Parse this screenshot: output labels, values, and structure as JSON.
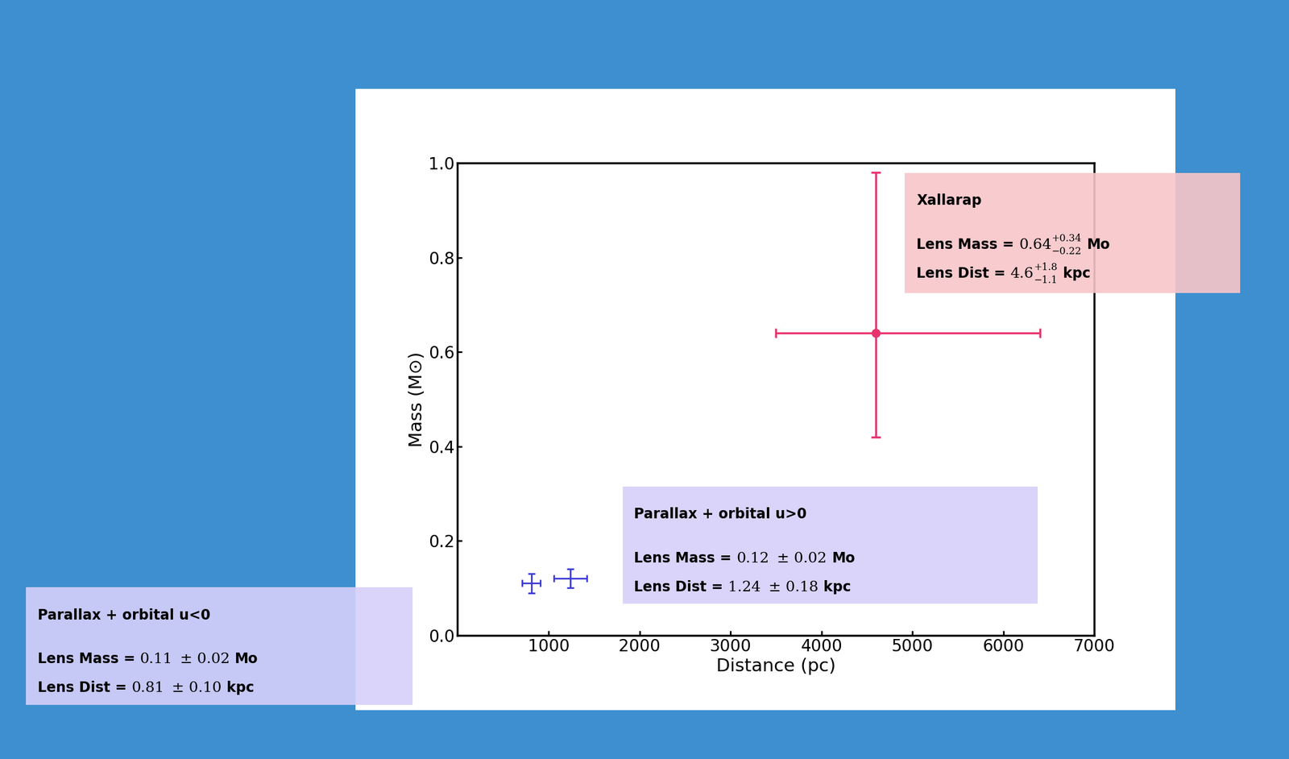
{
  "chart_data": {
    "type": "scatter",
    "x_label": "Distance (pc)",
    "y_label": "Mass (M⊙)",
    "xlim": [
      0,
      7000
    ],
    "xticks": [
      1000,
      2000,
      3000,
      4000,
      5000,
      6000,
      7000
    ],
    "ylim": [
      0.0,
      1.0
    ],
    "yticks": [
      0.0,
      0.2,
      0.4,
      0.6,
      0.8,
      1.0
    ],
    "grid": false,
    "series": [
      {
        "name": "Xallarap",
        "color": "#e8336e",
        "marker": "o",
        "x": [
          4600
        ],
        "y": [
          0.64
        ],
        "xerr_minus": [
          1100
        ],
        "xerr_plus": [
          1800
        ],
        "yerr_minus": [
          0.22
        ],
        "yerr_plus": [
          0.34
        ],
        "box_lines": [
          {
            "text": "Lens Mass = ",
            "value": "0.64",
            "upper": "+0.34",
            "lower": "−0.22",
            "unit": "Mo"
          },
          {
            "text": "Lens Dist = ",
            "value": "4.6",
            "upper": "+1.8",
            "lower": "−1.1",
            "unit": "kpc"
          }
        ]
      },
      {
        "name": "Parallax + orbital u>0",
        "color": "#3b3bd6",
        "marker": "none",
        "x": [
          1240
        ],
        "y": [
          0.12
        ],
        "xerr_minus": [
          180
        ],
        "xerr_plus": [
          180
        ],
        "yerr_minus": [
          0.02
        ],
        "yerr_plus": [
          0.02
        ],
        "box_lines": [
          {
            "text": "Lens Mass = ",
            "value": "0.12",
            "pm": "± 0.02",
            "unit": "Mo"
          },
          {
            "text": "Lens Dist = ",
            "value": "1.24",
            "pm": "± 0.18",
            "unit": "kpc"
          }
        ]
      },
      {
        "name": "Parallax + orbital u<0",
        "color": "#3b3bd6",
        "marker": "none",
        "x": [
          810
        ],
        "y": [
          0.11
        ],
        "xerr_minus": [
          100
        ],
        "xerr_plus": [
          100
        ],
        "yerr_minus": [
          0.02
        ],
        "yerr_plus": [
          0.02
        ],
        "box_lines": [
          {
            "text": "Lens Mass = ",
            "value": "0.11",
            "pm": "± 0.02",
            "unit": "Mo"
          },
          {
            "text": "Lens Dist = ",
            "value": "0.81",
            "pm": "± 0.10",
            "unit": "kpc"
          }
        ]
      }
    ]
  }
}
